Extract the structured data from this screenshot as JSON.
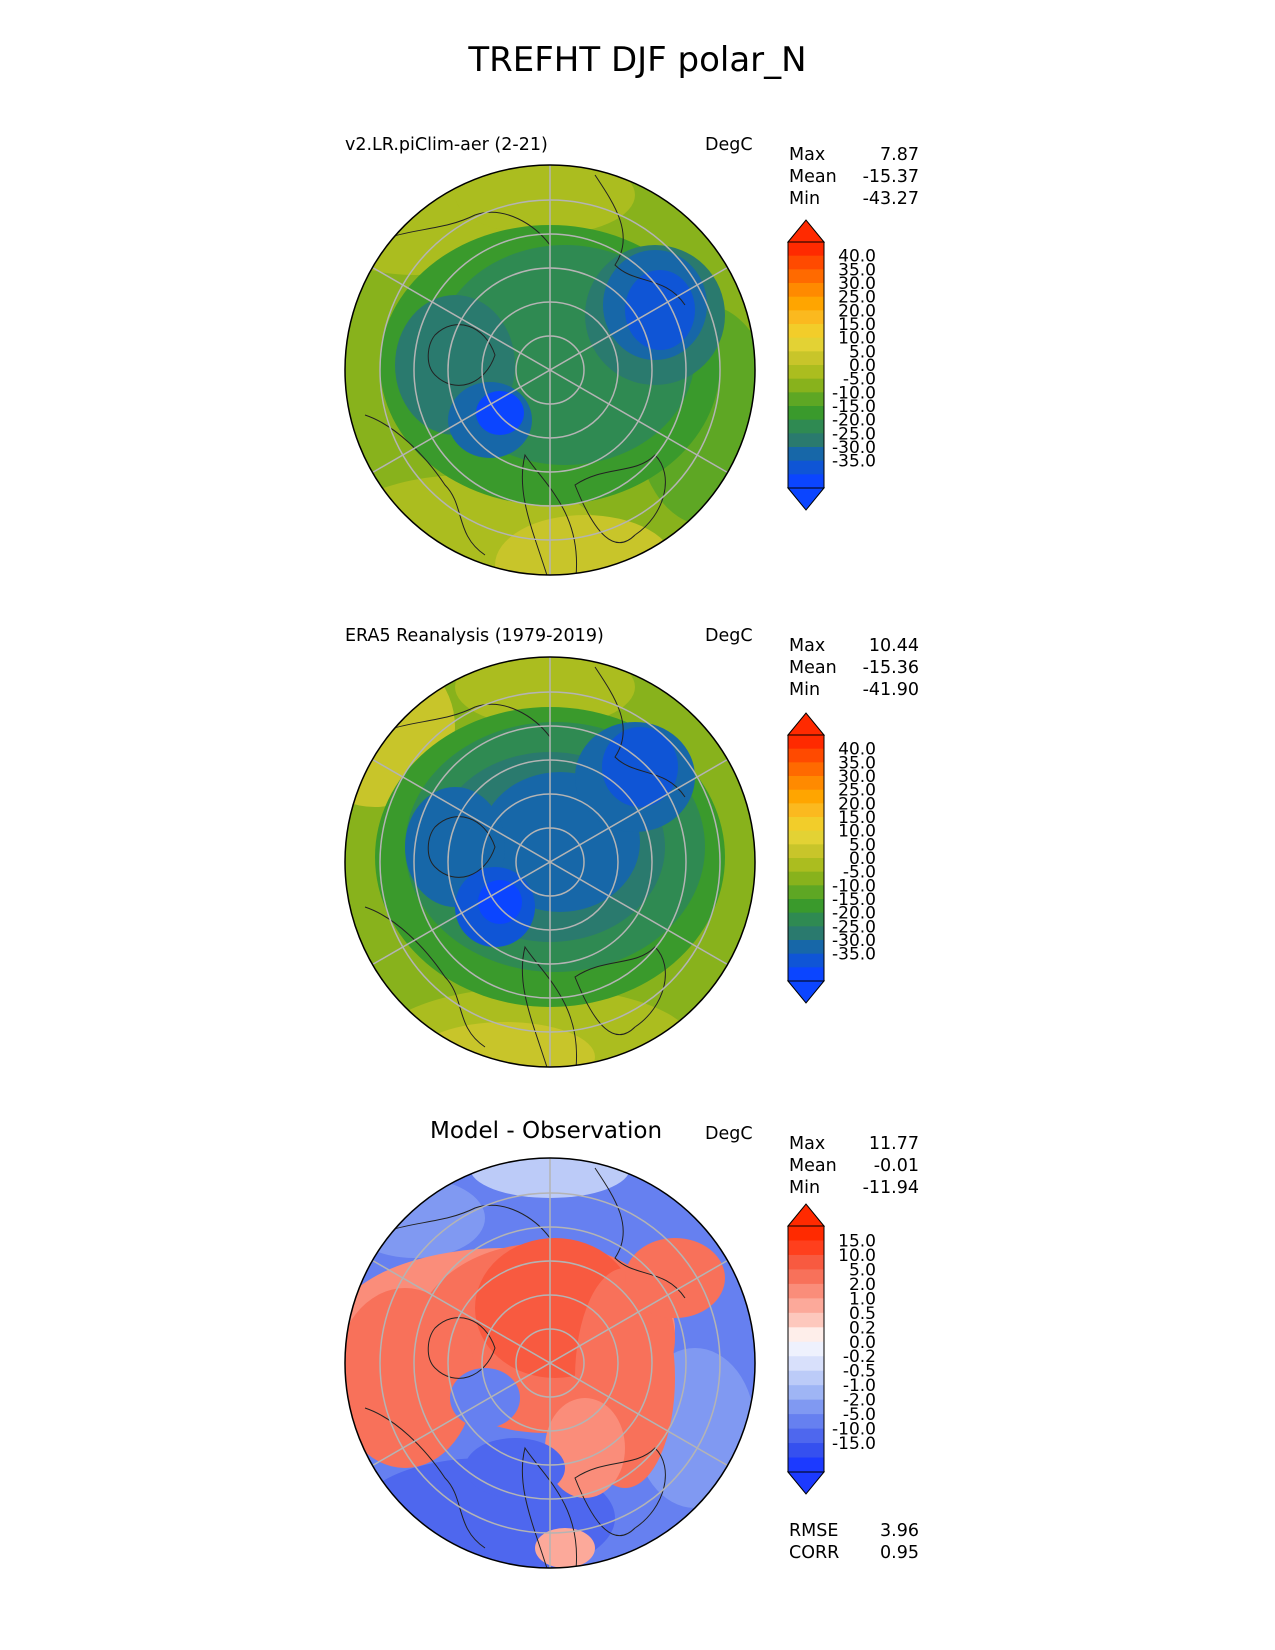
{
  "title": "TREFHT DJF polar_N",
  "panels": [
    {
      "title": "v2.LR.piClim-aer (2-21)",
      "units": "DegC",
      "stats": [
        {
          "label": "Max",
          "value": "7.87"
        },
        {
          "label": "Mean",
          "value": "-15.37"
        },
        {
          "label": "Min",
          "value": "-43.27"
        }
      ]
    },
    {
      "title": "ERA5 Reanalysis (1979-2019)",
      "units": "DegC",
      "stats": [
        {
          "label": "Max",
          "value": "10.44"
        },
        {
          "label": "Mean",
          "value": "-15.36"
        },
        {
          "label": "Min",
          "value": "-41.90"
        }
      ]
    },
    {
      "title": "Model - Observation",
      "units": "DegC",
      "stats": [
        {
          "label": "Max",
          "value": "11.77"
        },
        {
          "label": "Mean",
          "value": "-0.01"
        },
        {
          "label": "Min",
          "value": "-11.94"
        }
      ],
      "metrics": [
        {
          "label": "RMSE",
          "value": "3.96"
        },
        {
          "label": "CORR",
          "value": "0.95"
        }
      ]
    }
  ],
  "colorbar_temp": {
    "ticks": [
      "40.0",
      "35.0",
      "30.0",
      "25.0",
      "20.0",
      "15.0",
      "10.0",
      "5.0",
      "0.0",
      "-5.0",
      "-10.0",
      "-15.0",
      "-20.0",
      "-25.0",
      "-30.0",
      "-35.0"
    ],
    "colors": [
      "#ff2a00",
      "#ff4a00",
      "#ff6a00",
      "#ff8a00",
      "#ffa500",
      "#fbb91f",
      "#f2cd2a",
      "#e3d234",
      "#c8c52a",
      "#abbd1f",
      "#88b21c",
      "#5ea724",
      "#3a9a2c",
      "#2f8a52",
      "#2a7a6e",
      "#1767a8",
      "#0f55d6",
      "#0b45ff"
    ],
    "top_color": "#ff2a00",
    "bottom_color": "#0b45ff"
  },
  "colorbar_diff": {
    "ticks": [
      "15.0",
      "10.0",
      "5.0",
      "2.0",
      "1.0",
      "0.5",
      "0.2",
      "0.0",
      "-0.2",
      "-0.5",
      "-1.0",
      "-2.0",
      "-5.0",
      "-10.0",
      "-15.0"
    ],
    "colors": [
      "#ff2a00",
      "#ff3f1d",
      "#f85a40",
      "#f8715a",
      "#fa8d7a",
      "#fca99a",
      "#fdc8bd",
      "#feeeea",
      "#eef1fd",
      "#d8e0fb",
      "#bccbf8",
      "#9fb5f5",
      "#8099f2",
      "#6680f0",
      "#4e67ee",
      "#3550ef",
      "#1c3aff"
    ],
    "top_color": "#ff2a00",
    "bottom_color": "#1c3aff"
  }
}
